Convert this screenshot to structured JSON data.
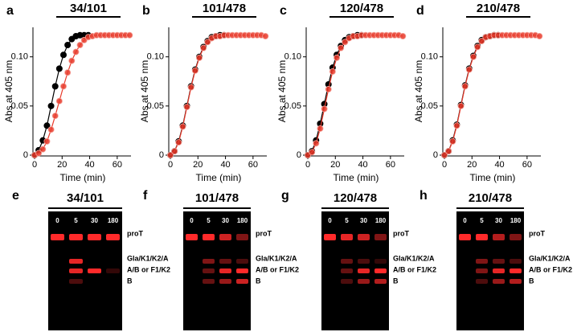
{
  "chart_data": [
    {
      "type": "line",
      "panel": "a",
      "title": "34/101",
      "x_label": "Time (min)",
      "y_label": "Abs at 405 nm",
      "x": [
        0,
        3,
        6,
        9,
        12,
        15,
        18,
        21,
        24,
        27,
        30,
        33,
        36,
        39,
        42,
        45,
        48,
        51,
        54,
        57,
        60,
        63,
        66,
        69
      ],
      "xlim": [
        0,
        70
      ],
      "xticks": [
        0,
        20,
        40,
        60
      ],
      "ylim": [
        0,
        0.13
      ],
      "yticks": [
        0,
        0.05,
        {
          "value": 0.1,
          "label": "0.10"
        }
      ],
      "series": [
        {
          "color": "#000000",
          "values": [
            0,
            0.005,
            0.015,
            0.03,
            0.05,
            0.07,
            0.088,
            0.102,
            0.112,
            0.118,
            0.121,
            0.122,
            0.122,
            0.122,
            null,
            null,
            null,
            null,
            null,
            null,
            null,
            null,
            null,
            null
          ]
        },
        {
          "color": "#e8392a",
          "values": [
            0,
            0.002,
            0.006,
            0.014,
            0.026,
            0.04,
            0.055,
            0.07,
            0.084,
            0.096,
            0.105,
            0.112,
            0.117,
            0.12,
            0.121,
            0.122,
            0.122,
            0.122,
            0.122,
            0.122,
            0.122,
            0.122,
            0.122,
            0.122
          ]
        }
      ]
    },
    {
      "type": "line",
      "panel": "b",
      "title": "101/478",
      "x_label": "Time (min)",
      "y_label": "Abs at 405 nm",
      "x": [
        0,
        3,
        6,
        9,
        12,
        15,
        18,
        21,
        24,
        27,
        30,
        33,
        36,
        39,
        42,
        45,
        48,
        51,
        54,
        57,
        60,
        63,
        66,
        69
      ],
      "xlim": [
        0,
        70
      ],
      "xticks": [
        0,
        20,
        40,
        60
      ],
      "ylim": [
        0,
        0.13
      ],
      "yticks": [
        0,
        0.05,
        {
          "value": 0.1,
          "label": "0.10"
        }
      ],
      "series": [
        {
          "color": "#000000",
          "values": [
            0,
            0.004,
            0.014,
            0.03,
            0.05,
            0.07,
            0.087,
            0.1,
            0.11,
            0.116,
            0.12,
            0.121,
            0.122,
            0.122,
            null,
            null,
            null,
            null,
            null,
            null,
            null,
            null,
            null,
            null
          ]
        },
        {
          "color": "#e8392a",
          "values": [
            0,
            0.004,
            0.013,
            0.029,
            0.049,
            0.069,
            0.086,
            0.099,
            0.109,
            0.115,
            0.119,
            0.121,
            0.121,
            0.122,
            0.122,
            0.122,
            0.122,
            0.122,
            0.122,
            0.122,
            0.122,
            0.122,
            0.122,
            0.121
          ]
        }
      ]
    },
    {
      "type": "line",
      "panel": "c",
      "title": "120/478",
      "x_label": "Time (min)",
      "y_label": "Abs at 405 nm",
      "x": [
        0,
        3,
        6,
        9,
        12,
        15,
        18,
        21,
        24,
        27,
        30,
        33,
        36,
        39,
        42,
        45,
        48,
        51,
        54,
        57,
        60,
        63,
        66,
        69
      ],
      "xlim": [
        0,
        70
      ],
      "xticks": [
        0,
        20,
        40,
        60
      ],
      "ylim": [
        0,
        0.13
      ],
      "yticks": [
        0,
        0.05,
        {
          "value": 0.1,
          "label": "0.10"
        }
      ],
      "series": [
        {
          "color": "#000000",
          "values": [
            0,
            0.004,
            0.015,
            0.032,
            0.052,
            0.072,
            0.089,
            0.102,
            0.111,
            0.117,
            0.12,
            0.121,
            0.122,
            0.122,
            null,
            null,
            null,
            null,
            null,
            null,
            null,
            null,
            null,
            null
          ]
        },
        {
          "color": "#e8392a",
          "values": [
            0,
            0.003,
            0.012,
            0.027,
            0.047,
            0.067,
            0.085,
            0.099,
            0.109,
            0.115,
            0.119,
            0.121,
            0.121,
            0.122,
            0.122,
            0.122,
            0.122,
            0.122,
            0.122,
            0.122,
            0.122,
            0.122,
            0.122,
            0.121
          ]
        }
      ]
    },
    {
      "type": "line",
      "panel": "d",
      "title": "210/478",
      "x_label": "Time (min)",
      "y_label": "Abs at 405 nm",
      "x": [
        0,
        3,
        6,
        9,
        12,
        15,
        18,
        21,
        24,
        27,
        30,
        33,
        36,
        39,
        42,
        45,
        48,
        51,
        54,
        57,
        60,
        63,
        66,
        69
      ],
      "xlim": [
        0,
        70
      ],
      "xticks": [
        0,
        20,
        40,
        60
      ],
      "ylim": [
        0,
        0.13
      ],
      "yticks": [
        0,
        0.05,
        {
          "value": 0.1,
          "label": "0.10"
        }
      ],
      "series": [
        {
          "color": "#000000",
          "values": [
            0,
            0.004,
            0.015,
            0.031,
            0.051,
            0.071,
            0.088,
            0.101,
            0.111,
            0.117,
            0.12,
            0.121,
            0.122,
            0.122,
            null,
            null,
            null,
            null,
            null,
            null,
            null,
            null,
            null,
            null
          ]
        },
        {
          "color": "#e8392a",
          "values": [
            0,
            0.004,
            0.014,
            0.03,
            0.05,
            0.07,
            0.087,
            0.1,
            0.11,
            0.116,
            0.12,
            0.121,
            0.122,
            0.122,
            0.122,
            0.122,
            0.122,
            0.122,
            0.122,
            0.122,
            0.122,
            0.122,
            0.122,
            0.121
          ]
        }
      ]
    }
  ],
  "gels": [
    {
      "panel": "e",
      "title": "34/101",
      "lanes": [
        "0",
        "5",
        "30",
        "180"
      ],
      "bands": [
        "proT",
        "Gla/K1/K2/A",
        "A/B or F1/K2",
        "B"
      ]
    },
    {
      "panel": "f",
      "title": "101/478",
      "lanes": [
        "0",
        "5",
        "30",
        "180"
      ],
      "bands": [
        "proT",
        "Gla/K1/K2/A",
        "A/B or F1/K2",
        "B"
      ]
    },
    {
      "panel": "g",
      "title": "120/478",
      "lanes": [
        "0",
        "5",
        "30",
        "180"
      ],
      "bands": [
        "proT",
        "Gla/K1/K2/A",
        "A/B or F1/K2",
        "B"
      ]
    },
    {
      "panel": "h",
      "title": "210/478",
      "lanes": [
        "0",
        "5",
        "30",
        "180"
      ],
      "bands": [
        "proT",
        "Gla/K1/K2/A",
        "A/B or F1/K2",
        "B"
      ]
    }
  ]
}
